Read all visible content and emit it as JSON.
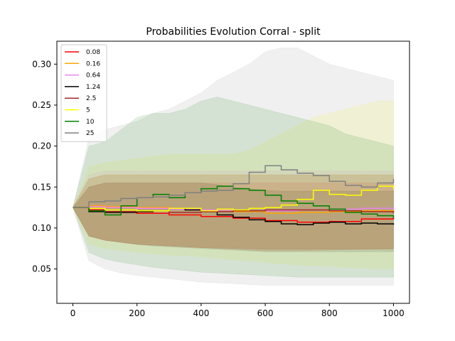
{
  "chart_data": {
    "type": "line",
    "title": "Probabilities Evolution Corral  - split",
    "xlabel": "",
    "ylabel": "",
    "xlim": [
      -50,
      1050
    ],
    "ylim": [
      0.008,
      0.328
    ],
    "xticks": [
      0,
      200,
      400,
      600,
      800,
      1000
    ],
    "yticks": [
      0.05,
      0.1,
      0.15,
      0.2,
      0.25,
      0.3
    ],
    "xtick_labels": [
      "0",
      "200",
      "400",
      "600",
      "800",
      "1000"
    ],
    "ytick_labels": [
      "0.05",
      "0.10",
      "0.15",
      "0.20",
      "0.25",
      "0.30"
    ],
    "legend_position": "top-left",
    "grid": false,
    "band": "shaded min-max range per series",
    "series": [
      {
        "name": "0.08",
        "color": "#ff0000",
        "x": [
          0,
          50,
          100,
          200,
          300,
          400,
          500,
          600,
          700,
          800,
          900,
          1000
        ],
        "y": [
          0.125,
          0.122,
          0.12,
          0.118,
          0.116,
          0.114,
          0.112,
          0.109,
          0.107,
          0.108,
          0.111,
          0.113
        ],
        "lower": [
          0.125,
          0.09,
          0.085,
          0.08,
          0.078,
          0.076,
          0.074,
          0.072,
          0.072,
          0.073,
          0.074,
          0.075
        ],
        "upper": [
          0.125,
          0.15,
          0.155,
          0.155,
          0.155,
          0.155,
          0.155,
          0.155,
          0.155,
          0.155,
          0.155,
          0.155
        ]
      },
      {
        "name": "0.16",
        "color": "#ffa500",
        "x": [
          0,
          50,
          100,
          200,
          300,
          400,
          500,
          600,
          700,
          800,
          900,
          1000
        ],
        "y": [
          0.125,
          0.127,
          0.126,
          0.125,
          0.124,
          0.122,
          0.12,
          0.118,
          0.119,
          0.12,
          0.121,
          0.122
        ],
        "lower": [
          0.125,
          0.09,
          0.085,
          0.08,
          0.078,
          0.076,
          0.075,
          0.074,
          0.074,
          0.074,
          0.074,
          0.074
        ],
        "upper": [
          0.125,
          0.16,
          0.165,
          0.165,
          0.165,
          0.165,
          0.165,
          0.165,
          0.165,
          0.165,
          0.165,
          0.165
        ]
      },
      {
        "name": "0.64",
        "color": "#ee82ee",
        "x": [
          0,
          50,
          100,
          200,
          300,
          400,
          500,
          600,
          700,
          800,
          900,
          1000
        ],
        "y": [
          0.125,
          0.126,
          0.125,
          0.124,
          0.123,
          0.122,
          0.121,
          0.121,
          0.122,
          0.123,
          0.124,
          0.125
        ],
        "lower": [
          0.125,
          0.09,
          0.085,
          0.08,
          0.078,
          0.076,
          0.075,
          0.074,
          0.074,
          0.074,
          0.074,
          0.074
        ],
        "upper": [
          0.125,
          0.165,
          0.17,
          0.17,
          0.17,
          0.17,
          0.17,
          0.17,
          0.17,
          0.17,
          0.17,
          0.17
        ]
      },
      {
        "name": "1.24",
        "color": "#000000",
        "x": [
          0,
          50,
          100,
          200,
          250,
          300,
          350,
          400,
          450,
          500,
          550,
          600,
          650,
          700,
          750,
          800,
          850,
          900,
          950,
          1000
        ],
        "y": [
          0.125,
          0.12,
          0.119,
          0.12,
          0.121,
          0.124,
          0.122,
          0.12,
          0.116,
          0.113,
          0.11,
          0.108,
          0.105,
          0.104,
          0.106,
          0.107,
          0.105,
          0.106,
          0.105,
          0.104
        ],
        "lower": [
          0.125,
          0.09,
          0.085,
          0.08,
          0.078,
          0.077,
          0.076,
          0.075,
          0.074,
          0.073,
          0.072,
          0.071,
          0.071,
          0.071,
          0.071,
          0.071,
          0.071,
          0.071,
          0.071,
          0.071
        ],
        "upper": [
          0.125,
          0.15,
          0.155,
          0.155,
          0.155,
          0.155,
          0.155,
          0.155,
          0.153,
          0.15,
          0.148,
          0.146,
          0.145,
          0.145,
          0.145,
          0.145,
          0.145,
          0.145,
          0.145,
          0.145
        ]
      },
      {
        "name": "2.5",
        "color": "#a52a2a",
        "x": [
          0,
          50,
          100,
          200,
          300,
          400,
          500,
          600,
          700,
          800,
          900,
          1000
        ],
        "y": [
          0.125,
          0.121,
          0.12,
          0.121,
          0.119,
          0.12,
          0.121,
          0.122,
          0.122,
          0.121,
          0.12,
          0.118
        ],
        "lower": [
          0.125,
          0.09,
          0.085,
          0.08,
          0.078,
          0.076,
          0.075,
          0.074,
          0.074,
          0.074,
          0.074,
          0.074
        ],
        "upper": [
          0.125,
          0.16,
          0.165,
          0.165,
          0.165,
          0.165,
          0.165,
          0.165,
          0.165,
          0.165,
          0.165,
          0.165
        ]
      },
      {
        "name": "5",
        "color": "#ffff00",
        "x": [
          0,
          50,
          100,
          200,
          300,
          400,
          450,
          500,
          550,
          600,
          650,
          700,
          750,
          800,
          850,
          900,
          950,
          1000
        ],
        "y": [
          0.125,
          0.124,
          0.122,
          0.121,
          0.124,
          0.121,
          0.123,
          0.122,
          0.124,
          0.125,
          0.128,
          0.135,
          0.146,
          0.141,
          0.14,
          0.146,
          0.151,
          0.148
        ],
        "lower": [
          0.125,
          0.08,
          0.075,
          0.07,
          0.067,
          0.065,
          0.063,
          0.061,
          0.06,
          0.058,
          0.056,
          0.055,
          0.054,
          0.053,
          0.052,
          0.051,
          0.05,
          0.05
        ],
        "upper": [
          0.125,
          0.175,
          0.18,
          0.185,
          0.19,
          0.19,
          0.19,
          0.19,
          0.195,
          0.205,
          0.215,
          0.225,
          0.235,
          0.24,
          0.245,
          0.25,
          0.255,
          0.255
        ]
      },
      {
        "name": "10",
        "color": "#008000",
        "x": [
          0,
          50,
          100,
          150,
          200,
          250,
          300,
          350,
          400,
          450,
          500,
          550,
          600,
          650,
          700,
          750,
          800,
          850,
          900,
          950,
          1000
        ],
        "y": [
          0.125,
          0.121,
          0.116,
          0.127,
          0.137,
          0.141,
          0.137,
          0.143,
          0.148,
          0.151,
          0.148,
          0.146,
          0.14,
          0.133,
          0.13,
          0.127,
          0.123,
          0.119,
          0.117,
          0.115,
          0.112
        ],
        "lower": [
          0.125,
          0.07,
          0.062,
          0.058,
          0.055,
          0.052,
          0.05,
          0.048,
          0.046,
          0.045,
          0.044,
          0.043,
          0.042,
          0.041,
          0.04,
          0.04,
          0.04,
          0.04,
          0.04,
          0.04,
          0.04
        ],
        "upper": [
          0.125,
          0.2,
          0.205,
          0.22,
          0.235,
          0.24,
          0.24,
          0.245,
          0.255,
          0.26,
          0.255,
          0.25,
          0.245,
          0.24,
          0.235,
          0.23,
          0.225,
          0.215,
          0.21,
          0.205,
          0.2
        ]
      },
      {
        "name": "25",
        "color": "#808080",
        "x": [
          0,
          50,
          100,
          150,
          200,
          250,
          300,
          350,
          400,
          450,
          500,
          550,
          600,
          650,
          700,
          750,
          800,
          850,
          900,
          950,
          1000
        ],
        "y": [
          0.125,
          0.132,
          0.133,
          0.136,
          0.137,
          0.138,
          0.14,
          0.143,
          0.145,
          0.146,
          0.154,
          0.168,
          0.176,
          0.171,
          0.167,
          0.164,
          0.157,
          0.152,
          0.15,
          0.155,
          0.16
        ],
        "lower": [
          0.125,
          0.06,
          0.05,
          0.045,
          0.042,
          0.04,
          0.038,
          0.036,
          0.034,
          0.033,
          0.032,
          0.031,
          0.03,
          0.03,
          0.03,
          0.03,
          0.03,
          0.03,
          0.03,
          0.03,
          0.03
        ],
        "upper": [
          0.125,
          0.21,
          0.22,
          0.225,
          0.23,
          0.24,
          0.245,
          0.255,
          0.265,
          0.28,
          0.29,
          0.3,
          0.315,
          0.32,
          0.32,
          0.31,
          0.3,
          0.295,
          0.29,
          0.285,
          0.28
        ]
      }
    ]
  }
}
